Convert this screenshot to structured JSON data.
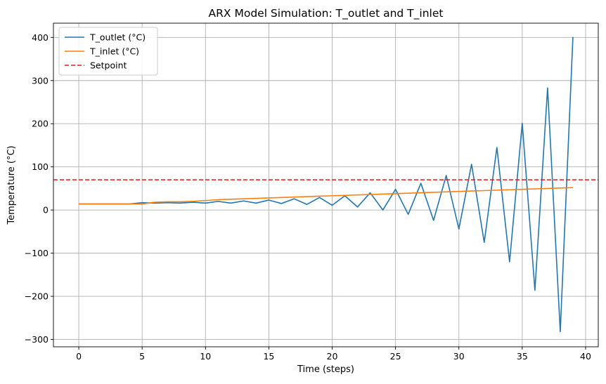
{
  "chart_data": {
    "type": "line",
    "title": "ARX Model Simulation: T_outlet and T_inlet",
    "xlabel": "Time (steps)",
    "ylabel": "Temperature (°C)",
    "xlim": [
      -2,
      41
    ],
    "ylim": [
      -317,
      433
    ],
    "xticks": [
      0,
      5,
      10,
      15,
      20,
      25,
      30,
      35,
      40
    ],
    "yticks": [
      -300,
      -200,
      -100,
      0,
      100,
      200,
      300,
      400
    ],
    "ytick_labels": [
      "−300",
      "−200",
      "−100",
      "0",
      "100",
      "200",
      "300",
      "400"
    ],
    "grid": true,
    "legend_position": "top-left",
    "series": [
      {
        "name": "T_outlet (°C)",
        "color": "#1f77b4",
        "style": "solid",
        "x": [
          0,
          1,
          2,
          3,
          4,
          5,
          6,
          7,
          8,
          9,
          10,
          11,
          12,
          13,
          14,
          15,
          16,
          17,
          18,
          19,
          20,
          21,
          22,
          23,
          24,
          25,
          26,
          27,
          28,
          29,
          30,
          31,
          32,
          33,
          34,
          35,
          36,
          37,
          38,
          39
        ],
        "values": [
          14,
          14,
          14,
          14,
          14,
          17,
          16,
          17,
          16,
          18,
          16,
          20,
          16,
          21,
          16,
          23,
          15,
          26,
          13,
          29,
          11,
          33,
          7,
          40,
          0,
          48,
          -10,
          62,
          -24,
          80,
          -44,
          106,
          -75,
          145,
          -120,
          201,
          -186,
          283,
          -282,
          401
        ]
      },
      {
        "name": "T_inlet (°C)",
        "color": "#ff7f0e",
        "style": "solid",
        "x": [
          0,
          1,
          2,
          3,
          4,
          5,
          6,
          7,
          8,
          9,
          10,
          11,
          12,
          13,
          14,
          15,
          16,
          17,
          18,
          19,
          20,
          21,
          22,
          23,
          24,
          25,
          26,
          27,
          28,
          29,
          30,
          31,
          32,
          33,
          34,
          35,
          36,
          37,
          38,
          39
        ],
        "values": [
          14,
          14,
          14,
          14,
          14,
          14,
          18,
          19,
          19,
          20,
          22,
          24,
          25,
          26,
          27,
          28,
          29,
          30,
          31,
          32,
          33,
          34,
          35,
          36,
          37,
          38,
          39,
          40,
          41,
          42,
          43,
          44,
          45,
          46,
          47,
          48,
          49,
          50,
          51,
          52
        ]
      },
      {
        "name": "Setpoint",
        "color": "#e41a1c",
        "style": "dashed",
        "constant": 70
      }
    ]
  }
}
